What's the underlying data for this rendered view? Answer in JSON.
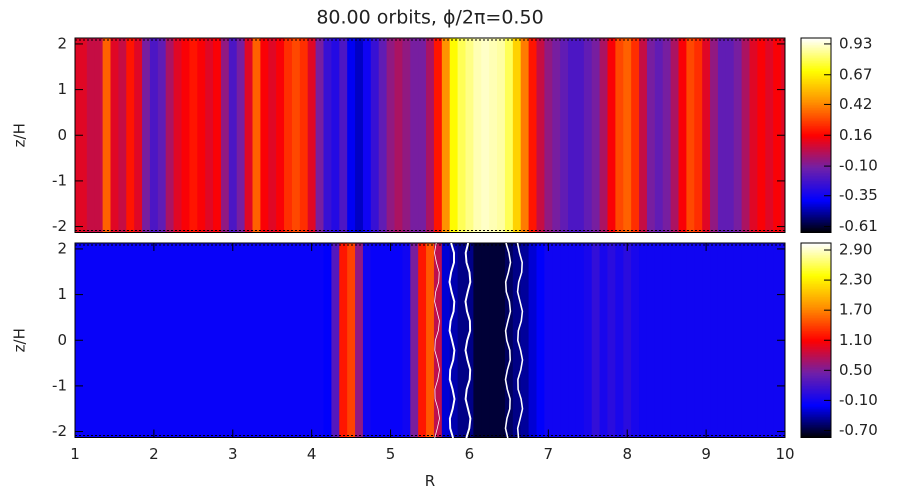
{
  "chart_data": [
    {
      "type": "heatmap",
      "title": "80.00 orbits, ϕ/2π=0.50",
      "ylabel": "z/H",
      "x": [
        1,
        1.1,
        1.2,
        1.3,
        1.4,
        1.5,
        1.6,
        1.7,
        1.8,
        1.9,
        2,
        2.1,
        2.2,
        2.3,
        2.4,
        2.5,
        2.6,
        2.7,
        2.8,
        2.9,
        3,
        3.1,
        3.2,
        3.3,
        3.4,
        3.5,
        3.6,
        3.7,
        3.8,
        3.9,
        4,
        4.1,
        4.2,
        4.3,
        4.4,
        4.5,
        4.6,
        4.7,
        4.8,
        4.9,
        5,
        5.1,
        5.2,
        5.3,
        5.4,
        5.5,
        5.6,
        5.7,
        5.8,
        5.9,
        6,
        6.1,
        6.2,
        6.3,
        6.4,
        6.5,
        6.6,
        6.7,
        6.8,
        6.9,
        7,
        7.1,
        7.2,
        7.3,
        7.4,
        7.5,
        7.6,
        7.7,
        7.8,
        7.9,
        8,
        8.1,
        8.2,
        8.3,
        8.4,
        8.5,
        8.6,
        8.7,
        8.8,
        8.9,
        9,
        9.1,
        9.2,
        9.3,
        9.4,
        9.5,
        9.6,
        9.7,
        9.8,
        9.9,
        10
      ],
      "values": [
        0.1,
        0.1,
        0.05,
        0.05,
        0.35,
        0.1,
        0.05,
        0.2,
        0.1,
        -0.1,
        -0.2,
        -0.15,
        0,
        0.1,
        0.15,
        0.2,
        0.15,
        0.1,
        0.15,
        -0.05,
        -0.2,
        -0.1,
        0.1,
        0.35,
        0.15,
        0.1,
        0.15,
        0.25,
        0.3,
        0.25,
        0.1,
        -0.1,
        -0.25,
        -0.3,
        -0.2,
        -0.4,
        -0.45,
        -0.35,
        -0.25,
        -0.15,
        -0.05,
        0,
        -0.05,
        -0.1,
        -0.1,
        0,
        0.2,
        0.45,
        0.7,
        0.8,
        0.85,
        0.9,
        0.92,
        0.9,
        0.88,
        0.8,
        0.6,
        0.4,
        0.2,
        0.05,
        -0.05,
        -0.1,
        -0.15,
        -0.2,
        -0.2,
        -0.15,
        -0.1,
        0,
        0.15,
        0.3,
        0.35,
        0.25,
        0.05,
        -0.1,
        -0.15,
        -0.1,
        0,
        0.15,
        0.3,
        0.25,
        0.1,
        -0.05,
        -0.15,
        -0.15,
        -0.1,
        0,
        0.1,
        0.15,
        0.1,
        0.15,
        0.1
      ],
      "xlim": [
        1,
        10
      ],
      "ylim": [
        -2.13,
        2.13
      ],
      "yticks": [
        -2,
        -1,
        0,
        1,
        2
      ],
      "clim": [
        -0.66,
        0.98
      ],
      "cticks": [
        -0.61,
        -0.35,
        {
          "value": -0.1,
          "label": "-0.10"
        },
        0.16,
        0.42,
        0.67,
        0.93
      ],
      "colormap": [
        "#000000",
        "#0000ff",
        "#7020a8",
        "#ff0000",
        "#ff8c00",
        "#ffff00",
        "#ffffff"
      ]
    },
    {
      "type": "heatmap",
      "ylabel": "z/H",
      "xlabel": "R",
      "x": [
        1,
        1.1,
        1.2,
        1.3,
        1.4,
        1.5,
        1.6,
        1.7,
        1.8,
        1.9,
        2,
        2.1,
        2.2,
        2.3,
        2.4,
        2.5,
        2.6,
        2.7,
        2.8,
        2.9,
        3,
        3.1,
        3.2,
        3.3,
        3.4,
        3.5,
        3.6,
        3.7,
        3.8,
        3.9,
        4,
        4.1,
        4.2,
        4.3,
        4.4,
        4.5,
        4.6,
        4.7,
        4.8,
        4.9,
        5,
        5.1,
        5.2,
        5.3,
        5.4,
        5.5,
        5.6,
        5.7,
        5.8,
        5.9,
        6,
        6.1,
        6.2,
        6.3,
        6.4,
        6.5,
        6.6,
        6.7,
        6.8,
        6.9,
        7,
        7.1,
        7.2,
        7.3,
        7.4,
        7.5,
        7.6,
        7.7,
        7.8,
        7.9,
        8,
        8.1,
        8.2,
        8.3,
        8.4,
        8.5,
        8.6,
        8.7,
        8.8,
        8.9,
        9,
        9.1,
        9.2,
        9.3,
        9.4,
        9.5,
        9.6,
        9.7,
        9.8,
        9.9,
        10
      ],
      "values": [
        -0.15,
        -0.15,
        -0.15,
        -0.15,
        -0.15,
        -0.15,
        -0.15,
        -0.15,
        -0.15,
        -0.15,
        -0.15,
        -0.15,
        -0.15,
        -0.15,
        -0.15,
        -0.15,
        -0.15,
        -0.15,
        -0.15,
        -0.15,
        -0.15,
        -0.15,
        -0.15,
        -0.15,
        -0.15,
        -0.15,
        -0.15,
        -0.15,
        -0.15,
        -0.15,
        -0.15,
        -0.15,
        -0.2,
        0.3,
        1.2,
        1.4,
        0.6,
        -0.1,
        -0.15,
        -0.15,
        -0.15,
        -0.15,
        -0.1,
        0.5,
        1.2,
        1.5,
        0.8,
        -0.3,
        -0.4,
        -0.5,
        -0.5,
        -0.7,
        -0.7,
        -0.7,
        -0.7,
        -0.6,
        -0.5,
        -0.45,
        -0.3,
        -0.2,
        -0.1,
        -0.1,
        -0.1,
        -0.1,
        -0.1,
        -0.05,
        0.1,
        -0.05,
        0.05,
        -0.05,
        0.05,
        -0.05,
        -0.1,
        -0.1,
        -0.1,
        -0.1,
        -0.1,
        -0.1,
        -0.1,
        -0.1,
        -0.1,
        -0.1,
        -0.1,
        -0.1,
        -0.1,
        -0.1,
        -0.1,
        -0.1,
        -0.1,
        -0.1,
        -0.1
      ],
      "xlim": [
        1,
        10
      ],
      "xticks": [
        1,
        2,
        3,
        4,
        5,
        6,
        7,
        8,
        9,
        10
      ],
      "ylim": [
        -2.13,
        2.13
      ],
      "yticks": [
        -2,
        -1,
        0,
        1,
        2
      ],
      "clim": [
        -0.84,
        3.04
      ],
      "cticks": [
        {
          "value": -0.7,
          "label": "-0.70"
        },
        {
          "value": -0.1,
          "label": "-0.10"
        },
        {
          "value": 0.5,
          "label": "0.50"
        },
        {
          "value": 1.1,
          "label": "1.10"
        },
        {
          "value": 1.7,
          "label": "1.70"
        },
        {
          "value": 2.3,
          "label": "2.30"
        },
        {
          "value": 2.9,
          "label": "2.90"
        }
      ],
      "colormap": [
        "#000000",
        "#0000ff",
        "#7020a8",
        "#ff0000",
        "#ff8c00",
        "#ffff00",
        "#ffffff"
      ]
    }
  ]
}
